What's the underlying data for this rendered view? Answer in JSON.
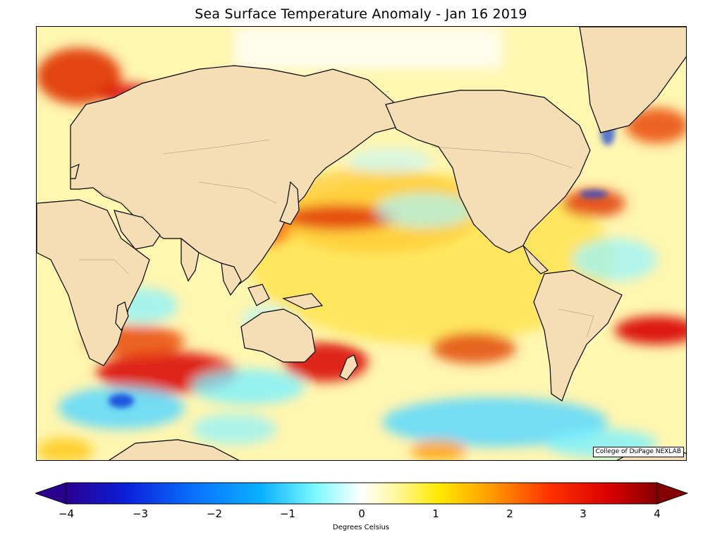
{
  "title": "Sea Surface Temperature Anomaly - Jan 16 2019",
  "credit": "College of DuPage NEXLAB",
  "colorbar": {
    "label": "Degrees Celsius",
    "ticks": [
      "−4",
      "−3",
      "−2",
      "−1",
      "0",
      "1",
      "2",
      "3",
      "4"
    ],
    "min": -4,
    "max": 4,
    "colors": [
      "#2a0090",
      "#0a1fd8",
      "#0a74ff",
      "#0ab0ff",
      "#7af8ff",
      "#ffffff",
      "#fff79a",
      "#ffea00",
      "#ff9a00",
      "#ff3000",
      "#d80000",
      "#850000"
    ]
  },
  "map": {
    "ocean_base": "#fffbe0",
    "land_color": "#f5deb3",
    "warm_color": "#d80000",
    "cool_color": "#0a74ff"
  }
}
